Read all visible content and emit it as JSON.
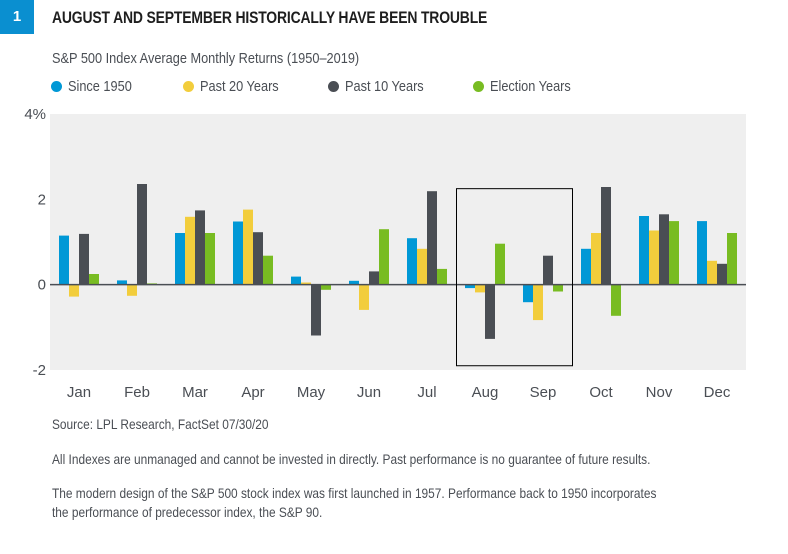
{
  "badge": "1",
  "title": "AUGUST AND SEPTEMBER HISTORICALLY HAVE BEEN TROUBLE",
  "colors": {
    "badge": "#0a8fd0",
    "since_1950": "#0098d6",
    "past_20": "#f2cd3c",
    "past_10": "#4a4e54",
    "election": "#78bc22",
    "plot_bg": "#efefef",
    "zero_line": "#4a4e54",
    "highlight_box": "#000000"
  },
  "source": "Source: LPL Research, FactSet   07/30/20",
  "notes": [
    "All Indexes are unmanaged and cannot be invested in directly. Past performance is no guarantee of future results.",
    "The modern design of the S&P 500 stock index was first launched in 1957. Performance back to 1950 incorporates",
    "the performance of predecessor index, the S&P 90."
  ],
  "chart_data": {
    "type": "bar",
    "title": "S&P 500 Index Average Monthly Returns (1950–2019)",
    "xlabel": "",
    "ylabel": "",
    "ylim": [
      -2,
      4
    ],
    "yticks": [
      {
        "value": 4,
        "label": "4%"
      },
      {
        "value": 2,
        "label": "2"
      },
      {
        "value": 0,
        "label": "0"
      },
      {
        "value": -2,
        "label": "-2"
      }
    ],
    "grid": false,
    "legend_position": "top-left",
    "categories": [
      "Jan",
      "Feb",
      "Mar",
      "Apr",
      "May",
      "Jun",
      "Jul",
      "Aug",
      "Sep",
      "Oct",
      "Nov",
      "Dec"
    ],
    "series": [
      {
        "name": "Since 1950",
        "color_key": "since_1950",
        "values": [
          1.15,
          0.1,
          1.21,
          1.48,
          0.19,
          0.09,
          1.09,
          -0.08,
          -0.41,
          0.84,
          1.61,
          1.49
        ]
      },
      {
        "name": "Past 20 Years",
        "color_key": "past_20",
        "values": [
          -0.28,
          -0.26,
          1.59,
          1.76,
          0.05,
          -0.59,
          0.84,
          -0.18,
          -0.83,
          1.21,
          1.27,
          0.56
        ]
      },
      {
        "name": "Past 10 Years",
        "color_key": "past_10",
        "values": [
          1.19,
          2.36,
          1.74,
          1.23,
          -1.19,
          0.31,
          2.19,
          -1.27,
          0.68,
          2.29,
          1.65,
          0.49
        ]
      },
      {
        "name": "Election Years",
        "color_key": "election",
        "values": [
          0.25,
          0.03,
          1.21,
          0.68,
          -0.12,
          1.3,
          0.37,
          0.96,
          -0.16,
          -0.73,
          1.49,
          1.21
        ]
      }
    ],
    "highlight": {
      "categories": [
        "Aug",
        "Sep"
      ],
      "ylim": [
        -1.9,
        2.25
      ]
    }
  }
}
